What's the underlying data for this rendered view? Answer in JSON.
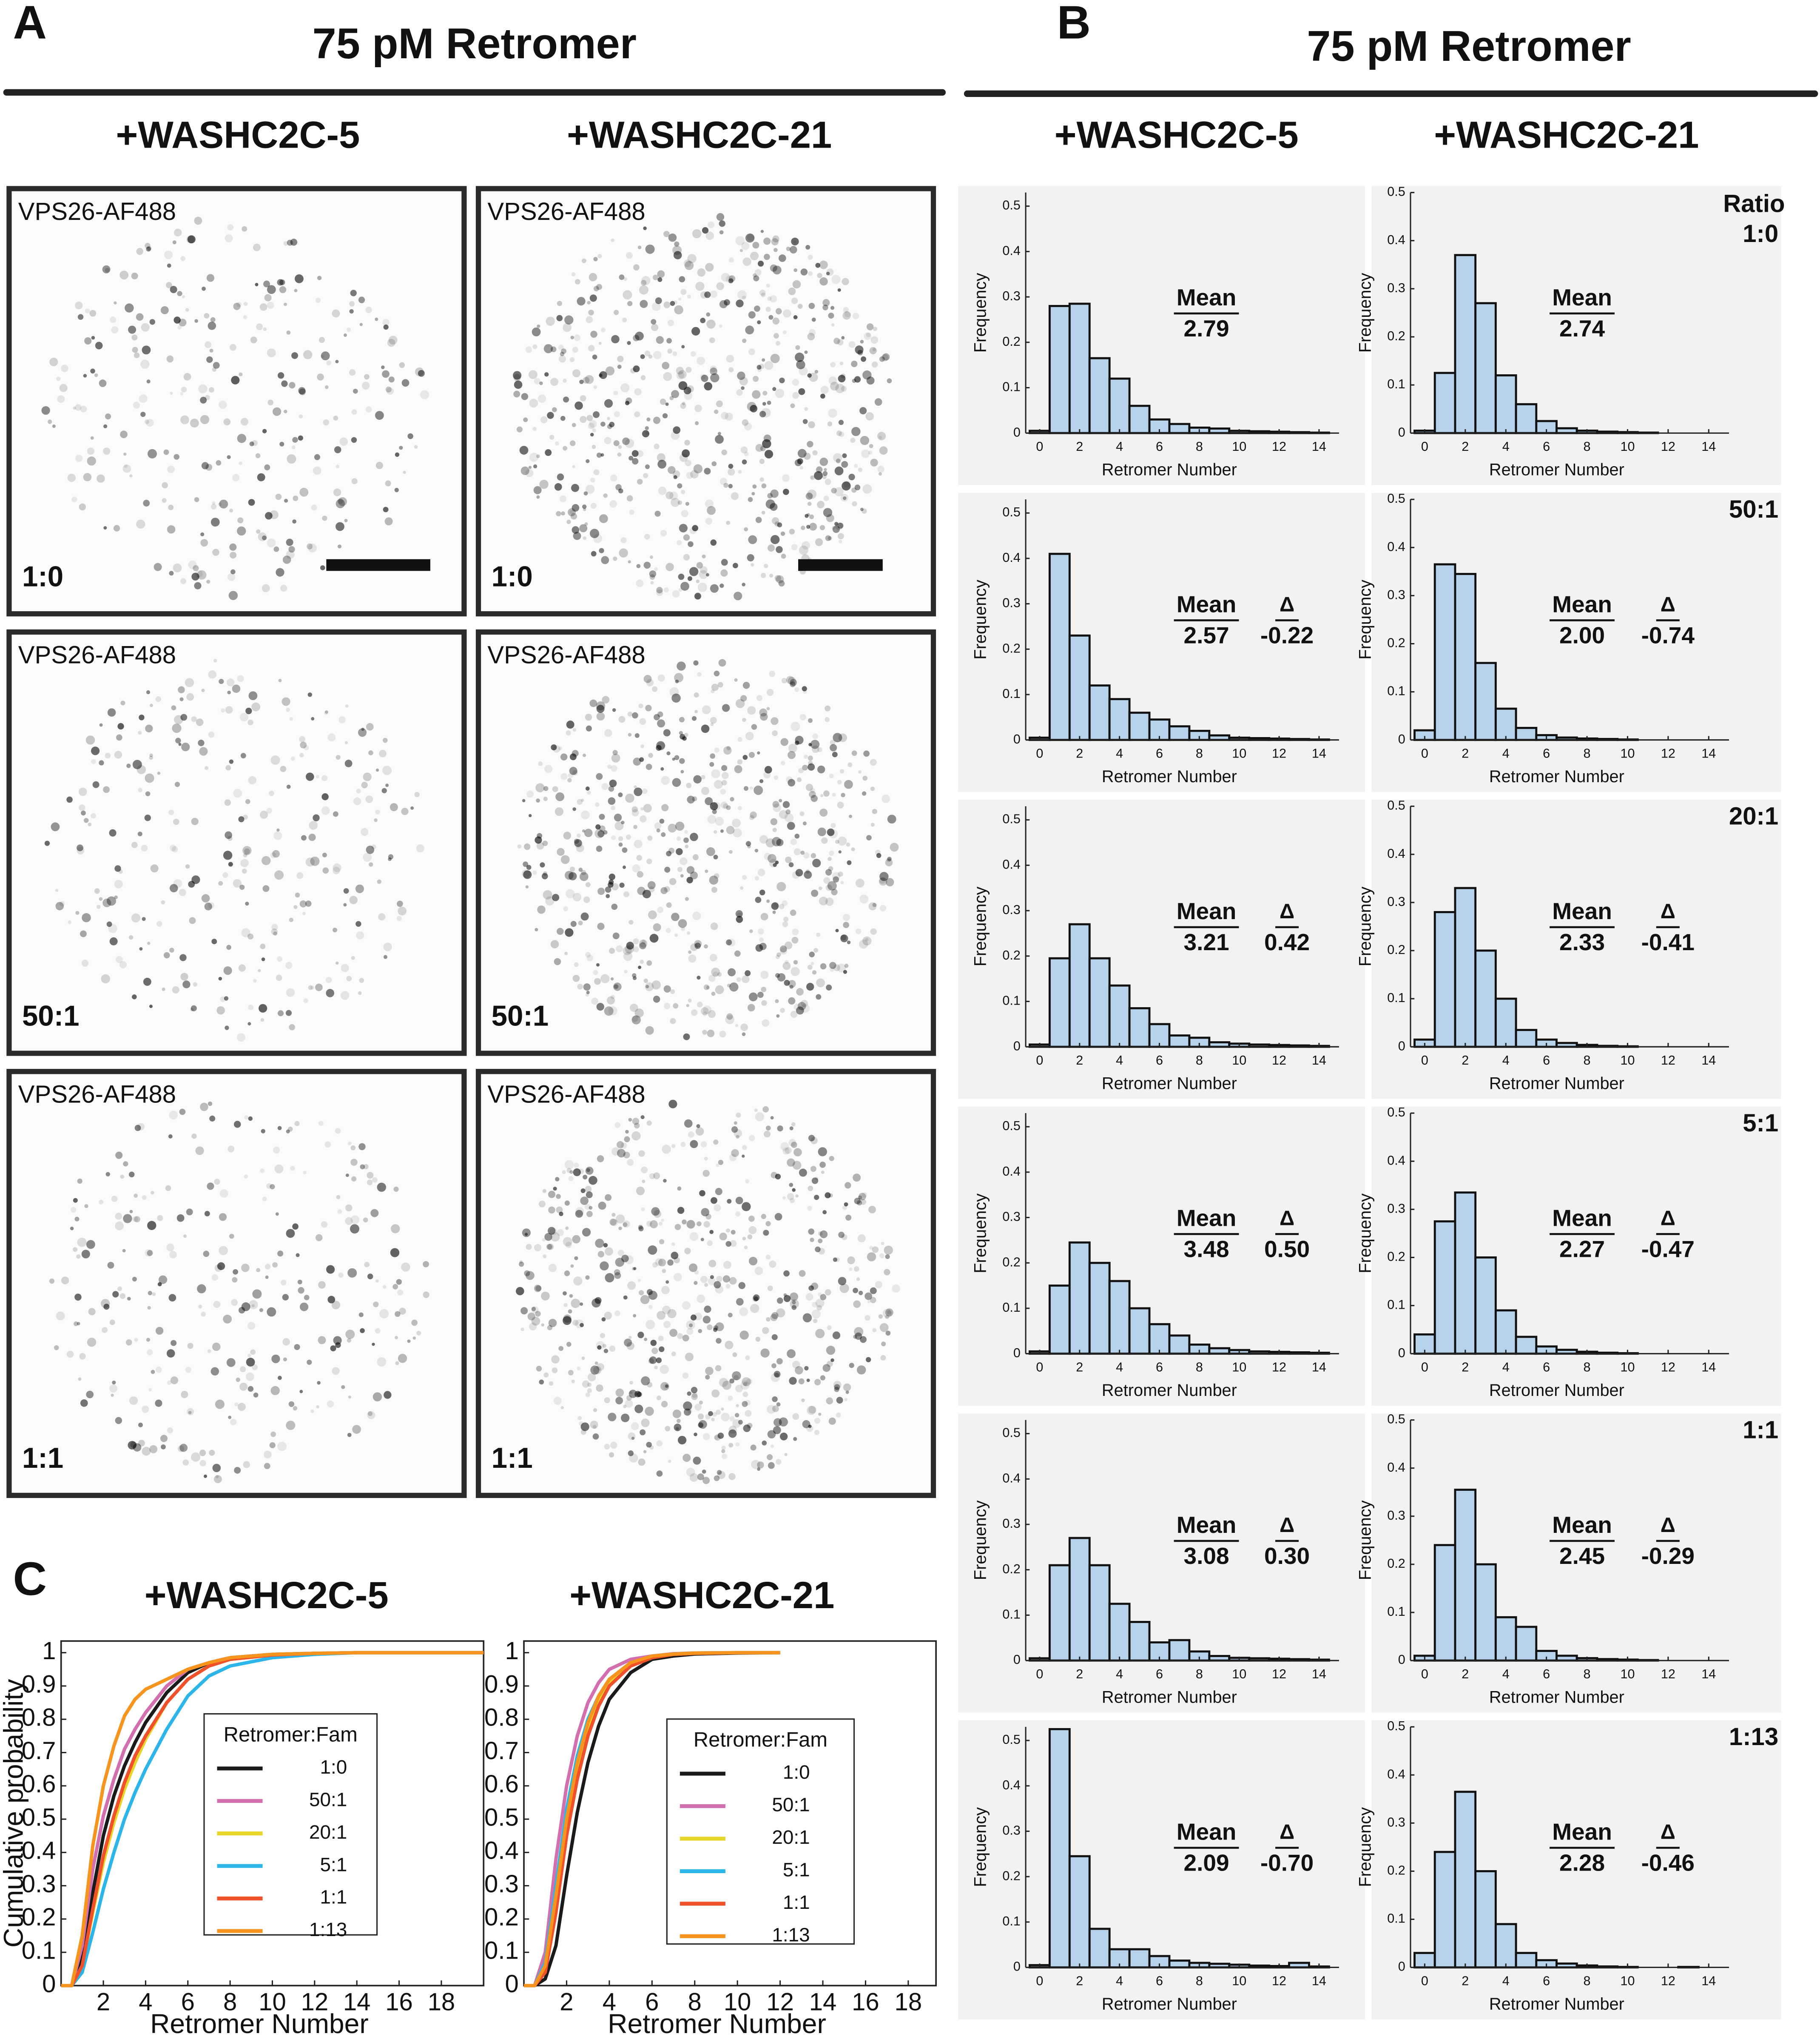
{
  "panel_labels": [
    "A",
    "B",
    "C"
  ],
  "panel_a": {
    "title": "75 pM Retromer",
    "columns": [
      "+WASHC2C-5",
      "+WASHC2C-21"
    ],
    "channel": "VPS26-AF488",
    "rows": [
      "1:0",
      "50:1",
      "1:1"
    ]
  },
  "panel_b": {
    "title": "75 pM Retromer",
    "columns": [
      "+WASHC2C-5",
      "+WASHC2C-21"
    ],
    "ratio_heading": "Ratio",
    "ratios": [
      "1:0",
      "50:1",
      "20:1",
      "5:1",
      "1:1",
      "1:13"
    ]
  },
  "panel_c": {
    "titles": [
      "+WASHC2C-5",
      "+WASHC2C-21"
    ]
  },
  "chart_data": [
    {
      "type": "histogram",
      "x_label": "Retromer Number",
      "y_label": "Frequency",
      "color": "#b7d3ec",
      "bins": [
        -0.5,
        0.5,
        1.5,
        2.5,
        3.5,
        4.5,
        5.5,
        6.5,
        7.5,
        8.5,
        9.5,
        10.5,
        11.5,
        12.5,
        13.5,
        14.5
      ],
      "values": [
        0.005,
        0.28,
        0.285,
        0.165,
        0.12,
        0.06,
        0.03,
        0.02,
        0.012,
        0.01,
        0.005,
        0.004,
        0.003,
        0.002,
        0.001
      ],
      "xlim": [
        -0.7,
        15
      ],
      "ylim": [
        0,
        0.53
      ],
      "xticks": [
        0,
        2,
        4,
        6,
        8,
        10,
        12,
        14
      ],
      "yticks": [
        0,
        0.1,
        0.2,
        0.3,
        0.4,
        0.5
      ],
      "annotations": [
        {
          "label": "Mean",
          "value": "2.79"
        }
      ]
    },
    {
      "type": "histogram",
      "x_label": "Retromer Number",
      "y_label": "Frequency",
      "color": "#b7d3ec",
      "bins": [
        -0.5,
        0.5,
        1.5,
        2.5,
        3.5,
        4.5,
        5.5,
        6.5,
        7.5,
        8.5,
        9.5,
        10.5,
        11.5,
        12.5,
        13.5,
        14.5
      ],
      "values": [
        0.005,
        0.125,
        0.37,
        0.27,
        0.12,
        0.06,
        0.025,
        0.01,
        0.005,
        0.003,
        0.002,
        0.001,
        0,
        0,
        0
      ],
      "xlim": [
        -0.7,
        15
      ],
      "ylim": [
        0,
        0.5
      ],
      "xticks": [
        0,
        2,
        4,
        6,
        8,
        10,
        12,
        14
      ],
      "yticks": [
        0,
        0.1,
        0.2,
        0.3,
        0.4,
        0.5
      ],
      "annotations": [
        {
          "label": "Mean",
          "value": "2.74"
        }
      ]
    },
    {
      "type": "histogram",
      "x_label": "Retromer Number",
      "y_label": "Frequency",
      "color": "#b7d3ec",
      "bins": [
        -0.5,
        0.5,
        1.5,
        2.5,
        3.5,
        4.5,
        5.5,
        6.5,
        7.5,
        8.5,
        9.5,
        10.5,
        11.5,
        12.5,
        13.5,
        14.5
      ],
      "values": [
        0.005,
        0.41,
        0.23,
        0.12,
        0.09,
        0.06,
        0.045,
        0.03,
        0.02,
        0.01,
        0.005,
        0.004,
        0.003,
        0.002,
        0.001
      ],
      "xlim": [
        -0.7,
        15
      ],
      "ylim": [
        0,
        0.53
      ],
      "xticks": [
        0,
        2,
        4,
        6,
        8,
        10,
        12,
        14
      ],
      "yticks": [
        0,
        0.1,
        0.2,
        0.3,
        0.4,
        0.5
      ],
      "annotations": [
        {
          "label": "Mean",
          "value": "2.57"
        },
        {
          "label": "Δ",
          "value": "-0.22"
        }
      ]
    },
    {
      "type": "histogram",
      "x_label": "Retromer Number",
      "y_label": "Frequency",
      "color": "#b7d3ec",
      "bins": [
        -0.5,
        0.5,
        1.5,
        2.5,
        3.5,
        4.5,
        5.5,
        6.5,
        7.5,
        8.5,
        9.5,
        10.5,
        11.5,
        12.5,
        13.5,
        14.5
      ],
      "values": [
        0.02,
        0.365,
        0.345,
        0.16,
        0.065,
        0.025,
        0.01,
        0.005,
        0.003,
        0.002,
        0.001,
        0,
        0,
        0,
        0
      ],
      "xlim": [
        -0.7,
        15
      ],
      "ylim": [
        0,
        0.5
      ],
      "xticks": [
        0,
        2,
        4,
        6,
        8,
        10,
        12,
        14
      ],
      "yticks": [
        0,
        0.1,
        0.2,
        0.3,
        0.4,
        0.5
      ],
      "annotations": [
        {
          "label": "Mean",
          "value": "2.00"
        },
        {
          "label": "Δ",
          "value": "-0.74"
        }
      ]
    },
    {
      "type": "histogram",
      "x_label": "Retromer Number",
      "y_label": "Frequency",
      "color": "#b7d3ec",
      "bins": [
        -0.5,
        0.5,
        1.5,
        2.5,
        3.5,
        4.5,
        5.5,
        6.5,
        7.5,
        8.5,
        9.5,
        10.5,
        11.5,
        12.5,
        13.5,
        14.5
      ],
      "values": [
        0.005,
        0.195,
        0.27,
        0.195,
        0.135,
        0.085,
        0.05,
        0.025,
        0.02,
        0.01,
        0.007,
        0.005,
        0.004,
        0.003,
        0.002
      ],
      "xlim": [
        -0.7,
        15
      ],
      "ylim": [
        0,
        0.53
      ],
      "xticks": [
        0,
        2,
        4,
        6,
        8,
        10,
        12,
        14
      ],
      "yticks": [
        0,
        0.1,
        0.2,
        0.3,
        0.4,
        0.5
      ],
      "annotations": [
        {
          "label": "Mean",
          "value": "3.21"
        },
        {
          "label": "Δ",
          "value": "0.42"
        }
      ]
    },
    {
      "type": "histogram",
      "x_label": "Retromer Number",
      "y_label": "Frequency",
      "color": "#b7d3ec",
      "bins": [
        -0.5,
        0.5,
        1.5,
        2.5,
        3.5,
        4.5,
        5.5,
        6.5,
        7.5,
        8.5,
        9.5,
        10.5,
        11.5,
        12.5,
        13.5,
        14.5
      ],
      "values": [
        0.015,
        0.28,
        0.33,
        0.2,
        0.1,
        0.035,
        0.015,
        0.008,
        0.004,
        0.002,
        0.001,
        0,
        0,
        0,
        0
      ],
      "xlim": [
        -0.7,
        15
      ],
      "ylim": [
        0,
        0.5
      ],
      "xticks": [
        0,
        2,
        4,
        6,
        8,
        10,
        12,
        14
      ],
      "yticks": [
        0,
        0.1,
        0.2,
        0.3,
        0.4,
        0.5
      ],
      "annotations": [
        {
          "label": "Mean",
          "value": "2.33"
        },
        {
          "label": "Δ",
          "value": "-0.41"
        }
      ]
    },
    {
      "type": "histogram",
      "x_label": "Retromer Number",
      "y_label": "Frequency",
      "color": "#b7d3ec",
      "bins": [
        -0.5,
        0.5,
        1.5,
        2.5,
        3.5,
        4.5,
        5.5,
        6.5,
        7.5,
        8.5,
        9.5,
        10.5,
        11.5,
        12.5,
        13.5,
        14.5
      ],
      "values": [
        0.005,
        0.15,
        0.245,
        0.2,
        0.16,
        0.1,
        0.065,
        0.04,
        0.02,
        0.012,
        0.008,
        0.005,
        0.004,
        0.003,
        0.002
      ],
      "xlim": [
        -0.7,
        15
      ],
      "ylim": [
        0,
        0.53
      ],
      "xticks": [
        0,
        2,
        4,
        6,
        8,
        10,
        12,
        14
      ],
      "yticks": [
        0,
        0.1,
        0.2,
        0.3,
        0.4,
        0.5
      ],
      "annotations": [
        {
          "label": "Mean",
          "value": "3.48"
        },
        {
          "label": "Δ",
          "value": "0.50"
        }
      ]
    },
    {
      "type": "histogram",
      "x_label": "Retromer Number",
      "y_label": "Frequency",
      "color": "#b7d3ec",
      "bins": [
        -0.5,
        0.5,
        1.5,
        2.5,
        3.5,
        4.5,
        5.5,
        6.5,
        7.5,
        8.5,
        9.5,
        10.5,
        11.5,
        12.5,
        13.5,
        14.5
      ],
      "values": [
        0.04,
        0.275,
        0.335,
        0.2,
        0.09,
        0.035,
        0.015,
        0.008,
        0.004,
        0.002,
        0.001,
        0,
        0,
        0,
        0
      ],
      "xlim": [
        -0.7,
        15
      ],
      "ylim": [
        0,
        0.5
      ],
      "xticks": [
        0,
        2,
        4,
        6,
        8,
        10,
        12,
        14
      ],
      "yticks": [
        0,
        0.1,
        0.2,
        0.3,
        0.4,
        0.5
      ],
      "annotations": [
        {
          "label": "Mean",
          "value": "2.27"
        },
        {
          "label": "Δ",
          "value": "-0.47"
        }
      ]
    },
    {
      "type": "histogram",
      "x_label": "Retromer Number",
      "y_label": "Frequency",
      "color": "#b7d3ec",
      "bins": [
        -0.5,
        0.5,
        1.5,
        2.5,
        3.5,
        4.5,
        5.5,
        6.5,
        7.5,
        8.5,
        9.5,
        10.5,
        11.5,
        12.5,
        13.5,
        14.5
      ],
      "values": [
        0.005,
        0.21,
        0.27,
        0.21,
        0.125,
        0.085,
        0.04,
        0.045,
        0.02,
        0.01,
        0.006,
        0.005,
        0.004,
        0.003,
        0.002
      ],
      "xlim": [
        -0.7,
        15
      ],
      "ylim": [
        0,
        0.53
      ],
      "xticks": [
        0,
        2,
        4,
        6,
        8,
        10,
        12,
        14
      ],
      "yticks": [
        0,
        0.1,
        0.2,
        0.3,
        0.4,
        0.5
      ],
      "annotations": [
        {
          "label": "Mean",
          "value": "3.08"
        },
        {
          "label": "Δ",
          "value": "0.30"
        }
      ]
    },
    {
      "type": "histogram",
      "x_label": "Retromer Number",
      "y_label": "Frequency",
      "color": "#b7d3ec",
      "bins": [
        -0.5,
        0.5,
        1.5,
        2.5,
        3.5,
        4.5,
        5.5,
        6.5,
        7.5,
        8.5,
        9.5,
        10.5,
        11.5,
        12.5,
        13.5,
        14.5
      ],
      "values": [
        0.01,
        0.24,
        0.355,
        0.2,
        0.09,
        0.07,
        0.02,
        0.01,
        0.005,
        0.003,
        0.002,
        0.001,
        0,
        0,
        0
      ],
      "xlim": [
        -0.7,
        15
      ],
      "ylim": [
        0,
        0.5
      ],
      "xticks": [
        0,
        2,
        4,
        6,
        8,
        10,
        12,
        14
      ],
      "yticks": [
        0,
        0.1,
        0.2,
        0.3,
        0.4,
        0.5
      ],
      "annotations": [
        {
          "label": "Mean",
          "value": "2.45"
        },
        {
          "label": "Δ",
          "value": "-0.29"
        }
      ]
    },
    {
      "type": "histogram",
      "x_label": "Retromer Number",
      "y_label": "Frequency",
      "color": "#b7d3ec",
      "bins": [
        -0.5,
        0.5,
        1.5,
        2.5,
        3.5,
        4.5,
        5.5,
        6.5,
        7.5,
        8.5,
        9.5,
        10.5,
        11.5,
        12.5,
        13.5,
        14.5
      ],
      "values": [
        0.005,
        0.525,
        0.245,
        0.085,
        0.04,
        0.04,
        0.025,
        0.015,
        0.01,
        0.008,
        0.006,
        0.004,
        0.003,
        0.01,
        0.002
      ],
      "xlim": [
        -0.7,
        15
      ],
      "ylim": [
        0,
        0.53
      ],
      "xticks": [
        0,
        2,
        4,
        6,
        8,
        10,
        12,
        14
      ],
      "yticks": [
        0,
        0.1,
        0.2,
        0.3,
        0.4,
        0.5
      ],
      "annotations": [
        {
          "label": "Mean",
          "value": "2.09"
        },
        {
          "label": "Δ",
          "value": "-0.70"
        }
      ]
    },
    {
      "type": "histogram",
      "x_label": "Retromer Number",
      "y_label": "Frequency",
      "color": "#b7d3ec",
      "bins": [
        -0.5,
        0.5,
        1.5,
        2.5,
        3.5,
        4.5,
        5.5,
        6.5,
        7.5,
        8.5,
        9.5,
        10.5,
        11.5,
        12.5,
        13.5,
        14.5
      ],
      "values": [
        0.03,
        0.24,
        0.365,
        0.2,
        0.09,
        0.03,
        0.015,
        0.008,
        0.004,
        0.002,
        0.001,
        0,
        0,
        0.001,
        0
      ],
      "xlim": [
        -0.7,
        15
      ],
      "ylim": [
        0,
        0.5
      ],
      "xticks": [
        0,
        2,
        4,
        6,
        8,
        10,
        12,
        14
      ],
      "yticks": [
        0,
        0.1,
        0.2,
        0.3,
        0.4,
        0.5
      ],
      "annotations": [
        {
          "label": "Mean",
          "value": "2.28"
        },
        {
          "label": "Δ",
          "value": "-0.46"
        }
      ]
    },
    {
      "type": "line",
      "x_label": "Retromer Number",
      "y_label": "Cumulative probability",
      "legend_title": "Retromer:Fam",
      "x": [
        0,
        0.5,
        1,
        1.5,
        2,
        2.5,
        3,
        3.5,
        4,
        5,
        6,
        7,
        8,
        10,
        12,
        14,
        20
      ],
      "series": [
        {
          "name": "1:0",
          "color": "#1a1a1a",
          "values": [
            0,
            0,
            0.08,
            0.28,
            0.45,
            0.57,
            0.66,
            0.73,
            0.79,
            0.88,
            0.94,
            0.97,
            0.985,
            0.995,
            0.998,
            1,
            1
          ]
        },
        {
          "name": "50:1",
          "color": "#d36fae",
          "values": [
            0,
            0,
            0.12,
            0.35,
            0.51,
            0.62,
            0.71,
            0.77,
            0.82,
            0.9,
            0.95,
            0.97,
            0.985,
            0.995,
            0.998,
            1,
            1
          ]
        },
        {
          "name": "20:1",
          "color": "#e8d52a",
          "values": [
            0,
            0,
            0.06,
            0.22,
            0.37,
            0.49,
            0.59,
            0.67,
            0.74,
            0.85,
            0.92,
            0.96,
            0.98,
            0.993,
            0.998,
            1,
            1
          ]
        },
        {
          "name": "5:1",
          "color": "#2bb5e8",
          "values": [
            0,
            0,
            0.04,
            0.16,
            0.29,
            0.4,
            0.5,
            0.58,
            0.65,
            0.77,
            0.87,
            0.93,
            0.96,
            0.985,
            0.995,
            1,
            1
          ]
        },
        {
          "name": "1:1",
          "color": "#f0502a",
          "values": [
            0,
            0,
            0.06,
            0.23,
            0.39,
            0.51,
            0.61,
            0.69,
            0.75,
            0.85,
            0.92,
            0.96,
            0.98,
            0.993,
            0.998,
            1,
            1
          ]
        },
        {
          "name": "1:13",
          "color": "#f7941d",
          "values": [
            0,
            0,
            0.15,
            0.42,
            0.6,
            0.72,
            0.81,
            0.86,
            0.89,
            0.92,
            0.95,
            0.97,
            0.985,
            0.995,
            0.998,
            1,
            1
          ]
        }
      ],
      "xlim": [
        0,
        20
      ],
      "ylim": [
        0,
        1.035
      ],
      "xticks": [
        2,
        4,
        6,
        8,
        10,
        12,
        14,
        16,
        18
      ],
      "yticks": [
        0,
        0.1,
        0.2,
        0.3,
        0.4,
        0.5,
        0.6,
        0.7,
        0.8,
        0.9,
        1
      ]
    },
    {
      "type": "line",
      "x_label": "Retromer Number",
      "legend_title": "Retromer:Fam",
      "x": [
        0,
        0.5,
        1,
        1.5,
        2,
        2.5,
        3,
        3.5,
        4,
        5,
        6,
        7,
        8,
        10,
        12
      ],
      "series": [
        {
          "name": "1:0",
          "color": "#1a1a1a",
          "values": [
            0,
            0,
            0.02,
            0.12,
            0.33,
            0.52,
            0.67,
            0.78,
            0.86,
            0.94,
            0.98,
            0.99,
            0.996,
            0.999,
            1
          ]
        },
        {
          "name": "50:1",
          "color": "#d36fae",
          "values": [
            0,
            0,
            0.1,
            0.38,
            0.6,
            0.75,
            0.85,
            0.91,
            0.95,
            0.98,
            0.99,
            0.997,
            0.999,
            1,
            1
          ]
        },
        {
          "name": "20:1",
          "color": "#e8d52a",
          "values": [
            0,
            0,
            0.05,
            0.25,
            0.48,
            0.65,
            0.78,
            0.86,
            0.91,
            0.96,
            0.985,
            0.995,
            0.998,
            1,
            1
          ]
        },
        {
          "name": "5:1",
          "color": "#2bb5e8",
          "values": [
            0,
            0,
            0.07,
            0.3,
            0.53,
            0.69,
            0.8,
            0.87,
            0.92,
            0.97,
            0.99,
            0.996,
            0.999,
            1,
            1
          ]
        },
        {
          "name": "1:1",
          "color": "#f0502a",
          "values": [
            0,
            0,
            0.04,
            0.22,
            0.45,
            0.62,
            0.75,
            0.84,
            0.9,
            0.96,
            0.985,
            0.995,
            0.998,
            1,
            1
          ]
        },
        {
          "name": "1:13",
          "color": "#f7941d",
          "values": [
            0,
            0,
            0.06,
            0.27,
            0.5,
            0.67,
            0.79,
            0.87,
            0.92,
            0.97,
            0.99,
            0.996,
            0.999,
            1,
            1
          ]
        }
      ],
      "xlim": [
        0,
        19.3
      ],
      "ylim": [
        0,
        1.035
      ],
      "xticks": [
        2,
        4,
        6,
        8,
        10,
        12,
        14,
        16,
        18
      ],
      "yticks": [
        0,
        0.1,
        0.2,
        0.3,
        0.4,
        0.5,
        0.6,
        0.7,
        0.8,
        0.9,
        1
      ]
    }
  ]
}
